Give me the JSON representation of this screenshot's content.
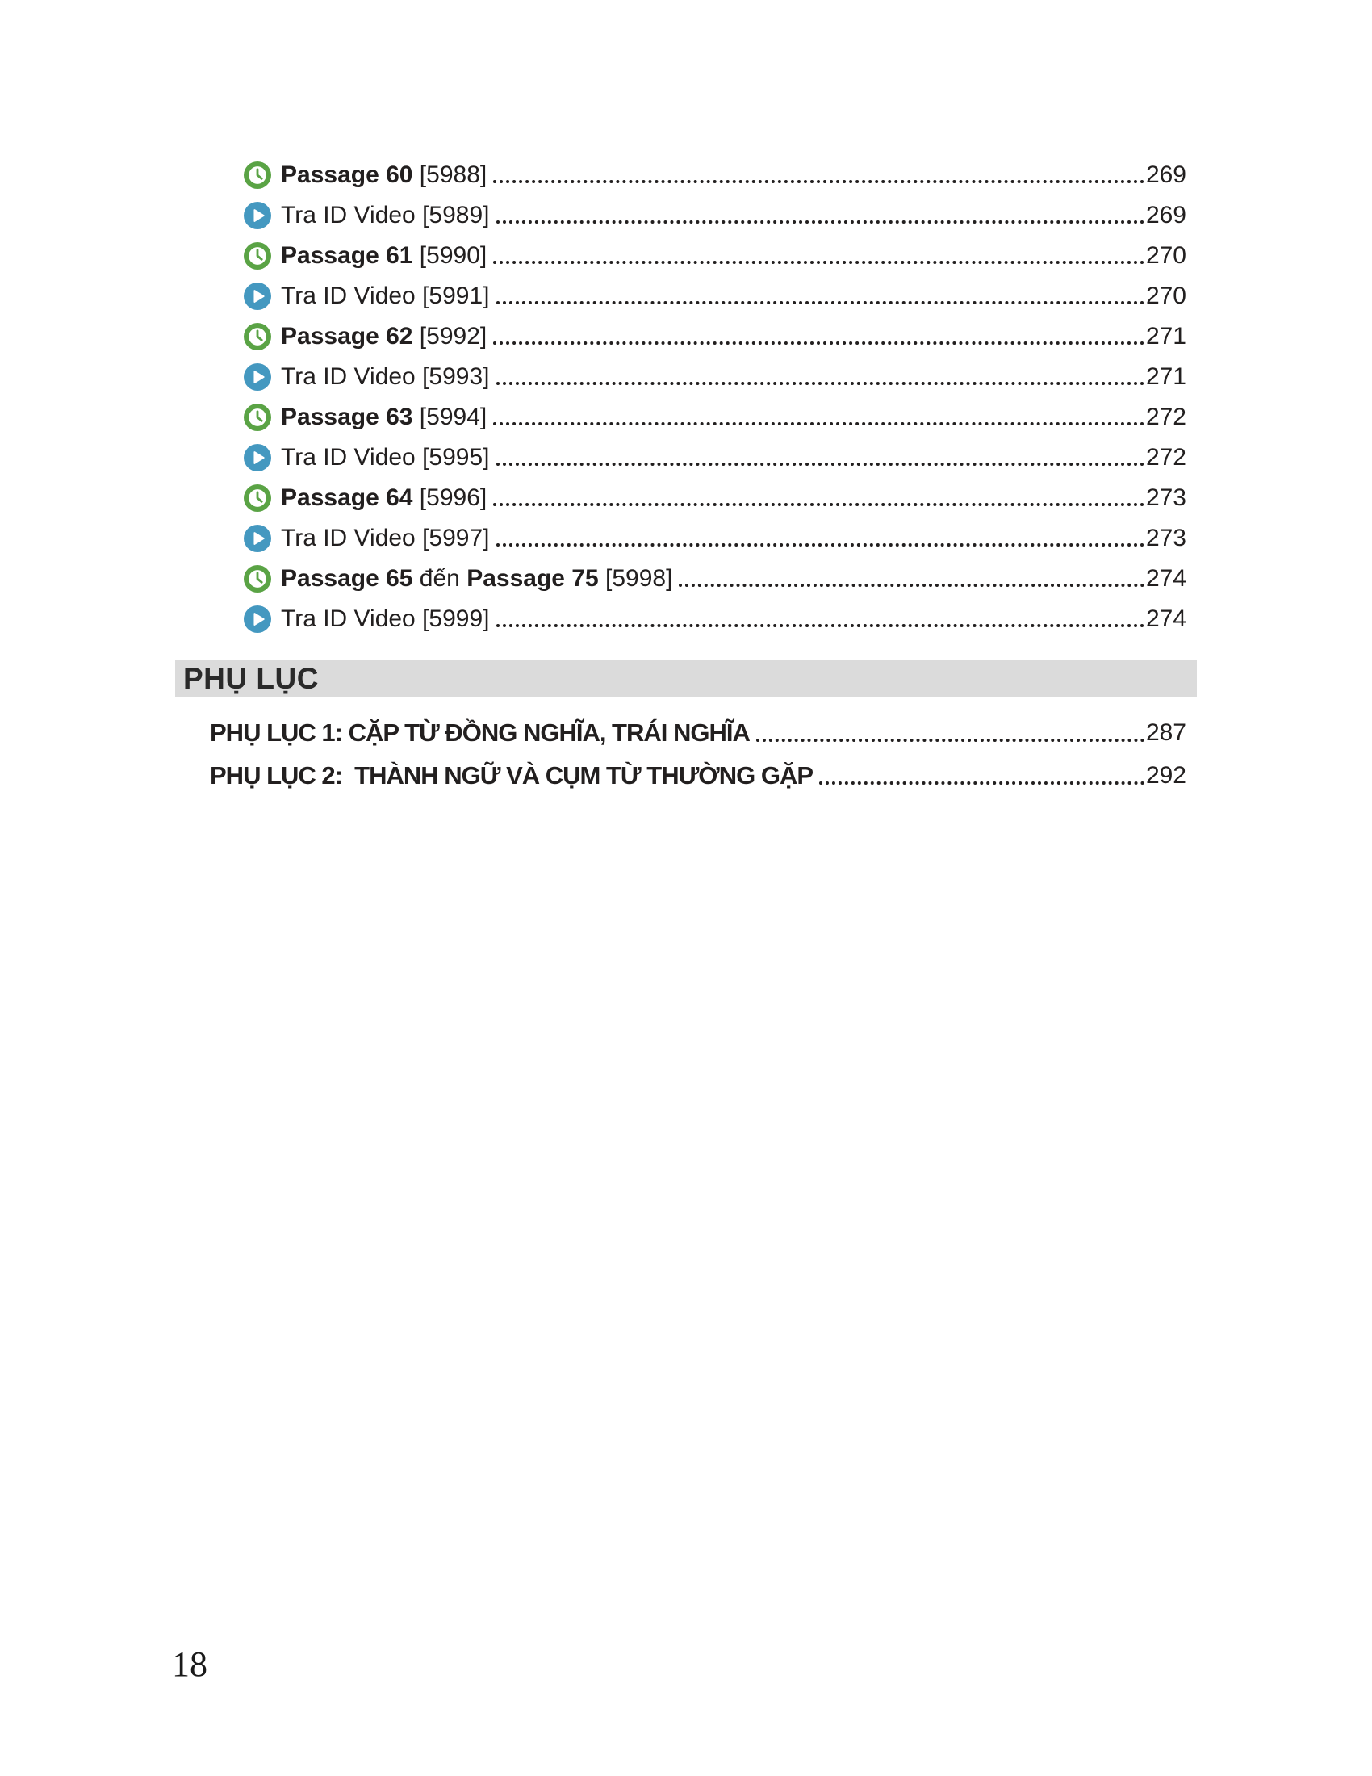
{
  "colors": {
    "clock_green": "#5aa345",
    "play_blue": "#4498c0",
    "bar_gray": "#dbdbdb",
    "text_dark": "#221f1f"
  },
  "toc": {
    "items": [
      {
        "icon": "clock",
        "segments": [
          {
            "t": "Passage 60",
            "b": true
          },
          {
            "t": " [5988]",
            "b": false
          }
        ],
        "page": "269"
      },
      {
        "icon": "play",
        "segments": [
          {
            "t": "Tra ID Video [5989]",
            "b": false
          }
        ],
        "page": "269"
      },
      {
        "icon": "clock",
        "segments": [
          {
            "t": "Passage 61",
            "b": true
          },
          {
            "t": " [5990]",
            "b": false
          }
        ],
        "page": "270"
      },
      {
        "icon": "play",
        "segments": [
          {
            "t": "Tra ID Video [5991]",
            "b": false
          }
        ],
        "page": "270"
      },
      {
        "icon": "clock",
        "segments": [
          {
            "t": "Passage 62",
            "b": true
          },
          {
            "t": " [5992]",
            "b": false
          }
        ],
        "page": "271"
      },
      {
        "icon": "play",
        "segments": [
          {
            "t": "Tra ID Video [5993]",
            "b": false
          }
        ],
        "page": "271"
      },
      {
        "icon": "clock",
        "segments": [
          {
            "t": "Passage 63",
            "b": true
          },
          {
            "t": " [5994]",
            "b": false
          }
        ],
        "page": "272"
      },
      {
        "icon": "play",
        "segments": [
          {
            "t": "Tra ID Video [5995]",
            "b": false
          }
        ],
        "page": "272"
      },
      {
        "icon": "clock",
        "segments": [
          {
            "t": "Passage 64",
            "b": true
          },
          {
            "t": " [5996]",
            "b": false
          }
        ],
        "page": "273"
      },
      {
        "icon": "play",
        "segments": [
          {
            "t": "Tra ID Video [5997]",
            "b": false
          }
        ],
        "page": "273"
      },
      {
        "icon": "clock",
        "segments": [
          {
            "t": "Passage 65",
            "b": true
          },
          {
            "t": " đến ",
            "b": false
          },
          {
            "t": "Passage 75",
            "b": true
          },
          {
            "t": " [5998]",
            "b": false
          }
        ],
        "page": "274"
      },
      {
        "icon": "play",
        "segments": [
          {
            "t": "Tra ID Video [5999]",
            "b": false
          }
        ],
        "page": "274"
      }
    ]
  },
  "appendix": {
    "header": "PHỤ LỤC",
    "items": [
      {
        "label": "PHỤ LỤC 1: CẶP TỪ ĐỒNG NGHĨA, TRÁI NGHĨA",
        "page": "287"
      },
      {
        "label": "PHỤ LỤC 2:  THÀNH NGỮ VÀ CỤM TỪ THƯỜNG GẶP",
        "page": "292"
      }
    ]
  },
  "footer": {
    "page_number": "18"
  }
}
